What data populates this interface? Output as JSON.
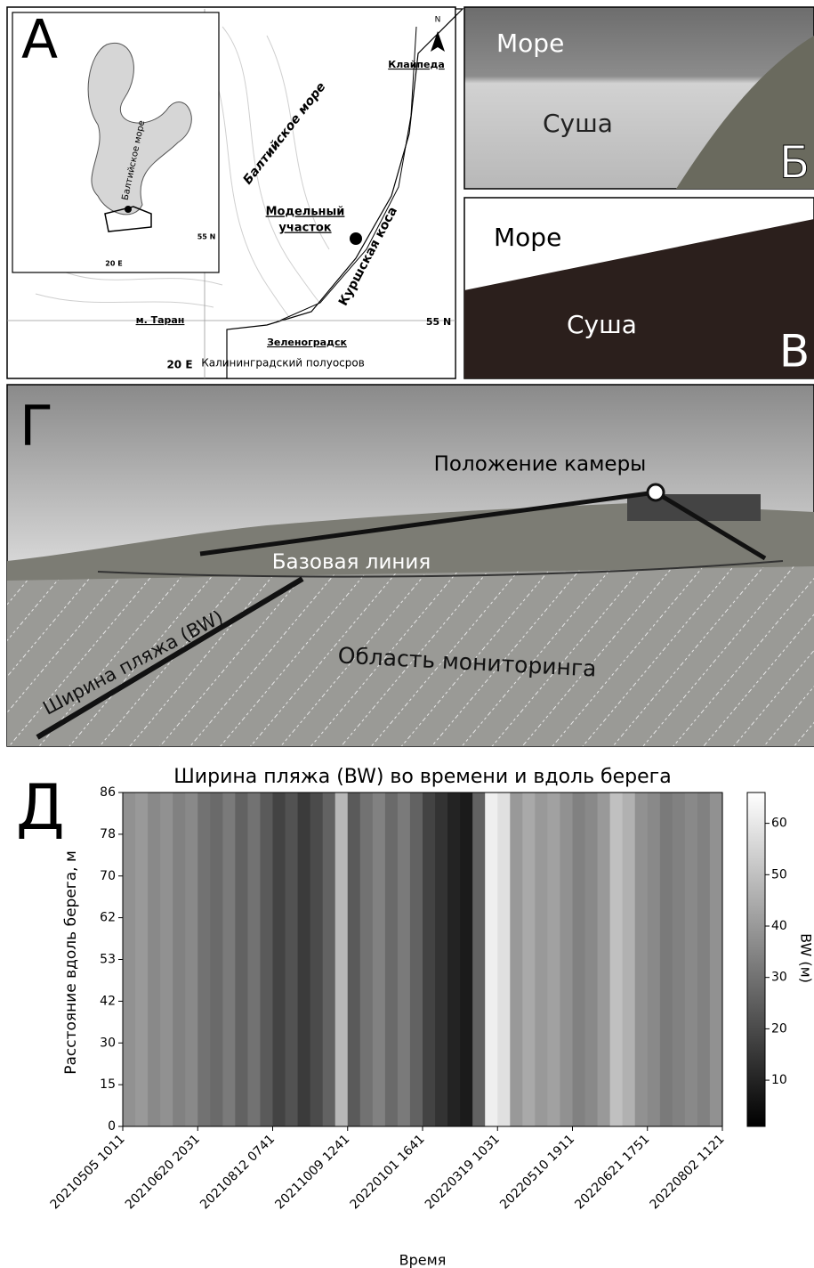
{
  "panel_a": {
    "letter": "А",
    "north": "N",
    "klaipeda": "Клайпеда",
    "sea": "Балтийское море",
    "model_site": [
      "Модельный",
      "участок"
    ],
    "spit": "Куршская коса",
    "taran": "м. Таран",
    "lat": "55 N",
    "zelenogradsk": "Зеленоградск",
    "lon": "20 E",
    "peninsula": "Калининградский полуосров",
    "inset": {
      "sea": "Балтийское море",
      "lat": "55 N",
      "lon": "20 E"
    }
  },
  "panel_b": {
    "letter": "Б",
    "sea": "Море",
    "land": "Суша"
  },
  "panel_v": {
    "letter": "В",
    "sea": "Море",
    "land": "Суша"
  },
  "panel_g": {
    "letter": "Г",
    "camera": "Положение камеры",
    "baseline": "Базовая линия",
    "beach_width": "Ширина пляжа (BW)",
    "monitoring_area": "Область мониторинга"
  },
  "panel_d": {
    "letter": "Д"
  },
  "chart_data": {
    "type": "heatmap",
    "title": "Ширина пляжа (BW) во времени и вдоль берега",
    "x_label": "Время",
    "y_label": "Расстояние вдоль берега, м",
    "colormap": "gray",
    "values": [
      38,
      40,
      36,
      38,
      34,
      36,
      30,
      28,
      32,
      26,
      30,
      24,
      18,
      22,
      16,
      20,
      26,
      48,
      24,
      30,
      34,
      28,
      32,
      26,
      18,
      14,
      10,
      8,
      26,
      62,
      58,
      40,
      44,
      40,
      42,
      38,
      34,
      36,
      40,
      50,
      46,
      38,
      36,
      32,
      34,
      36,
      34,
      38
    ],
    "xlim": [
      0,
      48
    ],
    "xticks": [
      {
        "value": 0,
        "label": "20210505 1011"
      },
      {
        "value": 6,
        "label": "20210620 2031"
      },
      {
        "value": 12,
        "label": "20210812 0741"
      },
      {
        "value": 18,
        "label": "20211009 1241"
      },
      {
        "value": 24,
        "label": "20220101 1641"
      },
      {
        "value": 30,
        "label": "20220319 1031"
      },
      {
        "value": 36,
        "label": "20220510 1911"
      },
      {
        "value": 42,
        "label": "20220621 1751"
      },
      {
        "value": 48,
        "label": "20220802 1121"
      }
    ],
    "ylim": [
      0,
      8
    ],
    "yticks": [
      0,
      {
        "value": 1,
        "label": "15"
      },
      {
        "value": 2,
        "label": "30"
      },
      {
        "value": 3,
        "label": "42"
      },
      {
        "value": 4,
        "label": "53"
      },
      {
        "value": 5,
        "label": "62"
      },
      {
        "value": 6,
        "label": "70"
      },
      {
        "value": 7,
        "label": "78"
      },
      {
        "value": 8,
        "label": "86"
      }
    ],
    "colorbar": {
      "label": "BW (м)",
      "lim": [
        1,
        66
      ],
      "ticks": [
        10,
        20,
        30,
        40,
        50,
        60
      ]
    }
  }
}
